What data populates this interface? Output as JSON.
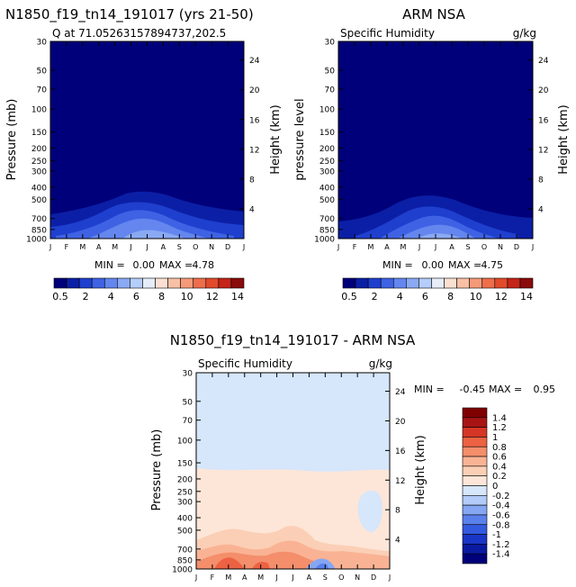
{
  "titles": {
    "left": "N1850_f19_tn14_191017 (yrs 21-50)",
    "right": "ARM NSA",
    "bottom": "N1850_f19_tn14_191017 - ARM NSA"
  },
  "chart_data": [
    {
      "type": "heatmap",
      "panel": "left",
      "subtitle": "Q at 71.05263157894737,202.5",
      "units": "",
      "ylabel": "Pressure (mb)",
      "y2label": "Height (km)",
      "xticks": [
        "J",
        "F",
        "M",
        "A",
        "M",
        "J",
        "J",
        "A",
        "S",
        "O",
        "N",
        "D",
        "J"
      ],
      "yticks": [
        "30",
        "50",
        "70",
        "100",
        "150",
        "200",
        "250",
        "300",
        "400",
        "500",
        "700",
        "850",
        "1000"
      ],
      "y2ticks": [
        "24",
        "20",
        "16",
        "12",
        "8",
        "4"
      ],
      "stats": {
        "min_label": "MIN =",
        "min": "0.00",
        "max_label": "MAX =",
        "max": "4.78"
      },
      "colorbar": {
        "orientation": "horizontal",
        "labels": [
          "0.5",
          "2",
          "4",
          "6",
          "8",
          "10",
          "12",
          "14"
        ]
      }
    },
    {
      "type": "heatmap",
      "panel": "right",
      "subtitle": "Specific Humidity",
      "units": "g/kg",
      "ylabel": "pressure level",
      "y2label": "Height (km)",
      "xticks": [
        "J",
        "F",
        "M",
        "A",
        "M",
        "J",
        "J",
        "A",
        "S",
        "O",
        "N",
        "D",
        "J"
      ],
      "yticks": [
        "30",
        "50",
        "70",
        "100",
        "150",
        "200",
        "250",
        "300",
        "400",
        "500",
        "700",
        "850",
        "1000"
      ],
      "y2ticks": [
        "24",
        "20",
        "16",
        "12",
        "8",
        "4"
      ],
      "stats": {
        "min_label": "MIN =",
        "min": "0.00",
        "max_label": "MAX =",
        "max": "4.75"
      },
      "colorbar": {
        "orientation": "horizontal",
        "labels": [
          "0.5",
          "2",
          "4",
          "6",
          "8",
          "10",
          "12",
          "14"
        ]
      }
    },
    {
      "type": "heatmap",
      "panel": "difference",
      "subtitle": "Specific Humidity",
      "units": "g/kg",
      "ylabel": "Pressure (mb)",
      "y2label": "Height (km)",
      "xticks": [
        "J",
        "F",
        "M",
        "A",
        "M",
        "J",
        "J",
        "A",
        "S",
        "O",
        "N",
        "D",
        "J"
      ],
      "yticks": [
        "30",
        "50",
        "70",
        "100",
        "150",
        "200",
        "250",
        "300",
        "400",
        "500",
        "700",
        "850",
        "1000"
      ],
      "y2ticks": [
        "24",
        "20",
        "16",
        "12",
        "8",
        "4"
      ],
      "stats": {
        "min_label": "MIN =",
        "min": "-0.45",
        "max_label": "MAX =",
        "max": "0.95"
      },
      "colorbar": {
        "orientation": "vertical",
        "labels": [
          "1.4",
          "1.2",
          "1",
          "0.8",
          "0.6",
          "0.4",
          "0.2",
          "0",
          "-0.2",
          "-0.4",
          "-0.6",
          "-0.8",
          "-1",
          "-1.2",
          "-1.4"
        ]
      }
    }
  ],
  "colors": {
    "seq": [
      "#00007a",
      "#0b1fa6",
      "#1f3fce",
      "#3f62e4",
      "#6486ee",
      "#8aa9f4",
      "#b5cdfa",
      "#e6edf8",
      "#fbe0d2",
      "#f8c0a4",
      "#f49a78",
      "#ee6e4c",
      "#e24a2c",
      "#c52418",
      "#8a0b0b"
    ],
    "div": [
      "#00007a",
      "#0a1aa0",
      "#1a36c6",
      "#345ae0",
      "#5a80ec",
      "#85a6f2",
      "#b2cbf8",
      "#d6e6fb",
      "#fde6d8",
      "#fbcfb6",
      "#f9b394",
      "#f48e6b",
      "#ec6243",
      "#d63626",
      "#a81414",
      "#7f0000"
    ]
  }
}
